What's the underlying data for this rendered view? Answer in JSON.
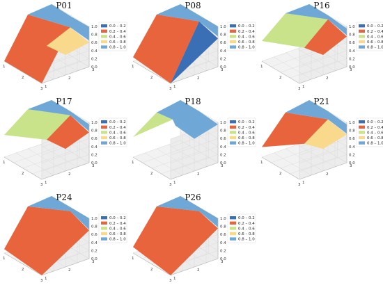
{
  "chart_data": [
    {
      "type": "surface",
      "title": "P01",
      "x": [
        1,
        2,
        3
      ],
      "y": [
        1,
        2,
        3
      ],
      "zlim": [
        0.0,
        1.0
      ],
      "z_ticks": [
        "0.0",
        "0.2",
        "0.4",
        "0.6",
        "0.8",
        "1.0"
      ],
      "x_ticks": [
        "1",
        "2",
        "3"
      ],
      "y_ticks": [
        "1",
        "2",
        "3"
      ],
      "legend": [
        "0.0 – 0.2",
        "0.2 – 0.4",
        "0.4 – 0.6",
        "0.6 – 0.8",
        "0.8 – 1.0"
      ],
      "regions": [
        {
          "band": 1,
          "vertices": [
            [
              1,
              1,
              0.0
            ],
            [
              1,
              2,
              0.95
            ],
            [
              2,
              3,
              0.7
            ],
            [
              3,
              1,
              0.0
            ]
          ]
        },
        {
          "band": 3,
          "vertices": [
            [
              2,
              3,
              0.7
            ],
            [
              3,
              3,
              0.6
            ],
            [
              3,
              2,
              0.5
            ],
            [
              2,
              2,
              0.45
            ]
          ]
        },
        {
          "band": 4,
          "vertices": [
            [
              1,
              2,
              0.95
            ],
            [
              1,
              3,
              1.0
            ],
            [
              2,
              3,
              0.98
            ],
            [
              3,
              3,
              0.99
            ],
            [
              3,
              3,
              0.65
            ],
            [
              2,
              3,
              0.7
            ]
          ]
        }
      ]
    },
    {
      "type": "surface",
      "title": "P08",
      "x": [
        1,
        2,
        3
      ],
      "y": [
        1,
        2,
        3
      ],
      "zlim": [
        0.0,
        1.0
      ],
      "z_ticks": [
        "0.0",
        "0.2",
        "0.4",
        "0.6",
        "0.8",
        "1.0"
      ],
      "x_ticks": [
        "1",
        "2",
        "3"
      ],
      "y_ticks": [
        "1",
        "2",
        "3"
      ],
      "legend": [
        "0.0 – 0.2",
        "0.2 – 0.4",
        "0.4 – 0.6",
        "0.6 – 0.8",
        "0.8 – 1.0"
      ],
      "regions": [
        {
          "band": 1,
          "vertices": [
            [
              1,
              1,
              0.1
            ],
            [
              1,
              2,
              0.95
            ],
            [
              2,
              3,
              0.85
            ],
            [
              3,
              1,
              0.0
            ]
          ]
        },
        {
          "band": 0,
          "vertices": [
            [
              2,
              3,
              0.85
            ],
            [
              3,
              3,
              0.7
            ],
            [
              3,
              1,
              0.0
            ]
          ]
        },
        {
          "band": 4,
          "vertices": [
            [
              1,
              2,
              0.95
            ],
            [
              1,
              3,
              1.0
            ],
            [
              2,
              3,
              1.0
            ],
            [
              3,
              3,
              1.0
            ],
            [
              3,
              3,
              0.75
            ],
            [
              2,
              3,
              0.85
            ]
          ]
        }
      ]
    },
    {
      "type": "surface",
      "title": "P16",
      "x": [
        1,
        2,
        3
      ],
      "y": [
        1,
        2,
        3
      ],
      "zlim": [
        0.0,
        1.0
      ],
      "z_ticks": [
        "0.0",
        "0.2",
        "0.4",
        "0.6",
        "0.8",
        "1.0"
      ],
      "x_ticks": [
        "1",
        "2",
        "3"
      ],
      "y_ticks": [
        "1",
        "2",
        "3"
      ],
      "legend": [
        "0.0 – 0.2",
        "0.2 – 0.4",
        "0.4 – 0.6",
        "0.6 – 0.8",
        "0.8 – 1.0"
      ],
      "regions": [
        {
          "band": 2,
          "vertices": [
            [
              1,
              1,
              0.5
            ],
            [
              1,
              2,
              0.98
            ],
            [
              2,
              3,
              0.9
            ],
            [
              2,
              2,
              0.4
            ]
          ]
        },
        {
          "band": 1,
          "vertices": [
            [
              2,
              3,
              0.9
            ],
            [
              3,
              3,
              0.75
            ],
            [
              3,
              2,
              0.5
            ],
            [
              2,
              2,
              0.4
            ]
          ]
        },
        {
          "band": 4,
          "vertices": [
            [
              1,
              2,
              0.98
            ],
            [
              1,
              3,
              1.0
            ],
            [
              2,
              3,
              1.0
            ],
            [
              3,
              3,
              0.95
            ],
            [
              3,
              3,
              0.78
            ],
            [
              2,
              3,
              0.9
            ]
          ]
        }
      ]
    },
    {
      "type": "surface",
      "title": "P17",
      "x": [
        1,
        2,
        3
      ],
      "y": [
        1,
        2,
        3
      ],
      "zlim": [
        0.0,
        1.0
      ],
      "z_ticks": [
        "0.0",
        "0.2",
        "0.4",
        "0.6",
        "0.8",
        "1.0"
      ],
      "x_ticks": [
        "1",
        "2",
        "3"
      ],
      "y_ticks": [
        "1",
        "2",
        "3"
      ],
      "legend": [
        "0.0 – 0.2",
        "0.2 – 0.4",
        "0.4 – 0.6",
        "0.6 – 0.8",
        "0.8 – 1.0"
      ],
      "regions": [
        {
          "band": 2,
          "vertices": [
            [
              1,
              1,
              0.55
            ],
            [
              1,
              2,
              0.98
            ],
            [
              2,
              3,
              0.9
            ],
            [
              2,
              2,
              0.5
            ]
          ]
        },
        {
          "band": 1,
          "vertices": [
            [
              2,
              3,
              0.9
            ],
            [
              3,
              3,
              0.75
            ],
            [
              3,
              2,
              0.55
            ],
            [
              2,
              2,
              0.5
            ]
          ]
        },
        {
          "band": 4,
          "vertices": [
            [
              1,
              2,
              0.98
            ],
            [
              1,
              3,
              1.0
            ],
            [
              2,
              3,
              1.0
            ],
            [
              3,
              3,
              0.95
            ],
            [
              3,
              3,
              0.78
            ],
            [
              2,
              3,
              0.9
            ]
          ]
        }
      ]
    },
    {
      "type": "surface",
      "title": "P18",
      "x": [
        1,
        2,
        3
      ],
      "y": [
        1,
        2,
        3
      ],
      "zlim": [
        0.0,
        1.0
      ],
      "z_ticks": [
        "0.0",
        "0.2",
        "0.4",
        "0.6",
        "0.8",
        "1.0"
      ],
      "x_ticks": [
        "1",
        "2",
        "3"
      ],
      "y_ticks": [
        "1",
        "2",
        "3"
      ],
      "legend": [
        "0.0 – 0.2",
        "0.2 – 0.4",
        "0.4 – 0.6",
        "0.6 – 0.8",
        "0.8 – 1.0"
      ],
      "regions": [
        {
          "band": 2,
          "vertices": [
            [
              1,
              1,
              0.5
            ],
            [
              1,
              2,
              0.9
            ],
            [
              1.6,
              2.2,
              0.85
            ]
          ]
        },
        {
          "band": 4,
          "vertices": [
            [
              1,
              2,
              0.9
            ],
            [
              1,
              3,
              1.0
            ],
            [
              2,
              3,
              1.0
            ],
            [
              3,
              3,
              0.95
            ],
            [
              3,
              2,
              0.8
            ],
            [
              2,
              2,
              0.85
            ],
            [
              1.6,
              2.2,
              0.85
            ]
          ]
        }
      ]
    },
    {
      "type": "surface",
      "title": "P21",
      "x": [
        1,
        2,
        3
      ],
      "y": [
        1,
        2,
        3
      ],
      "zlim": [
        0.0,
        1.0
      ],
      "z_ticks": [
        "0.0",
        "0.2",
        "0.4",
        "0.6",
        "0.8",
        "1.0"
      ],
      "x_ticks": [
        "1",
        "2",
        "3"
      ],
      "y_ticks": [
        "1",
        "2",
        "3"
      ],
      "legend": [
        "0.0 – 0.2",
        "0.2 – 0.4",
        "0.4 – 0.6",
        "0.6 – 0.8",
        "0.8 – 1.0"
      ],
      "regions": [
        {
          "band": 1,
          "vertices": [
            [
              1,
              1,
              0.25
            ],
            [
              1,
              2,
              0.9
            ],
            [
              2,
              3,
              0.8
            ],
            [
              2,
              2,
              0.4
            ]
          ]
        },
        {
          "band": 3,
          "vertices": [
            [
              2,
              3,
              0.8
            ],
            [
              3,
              3,
              0.7
            ],
            [
              3,
              2,
              0.55
            ],
            [
              2,
              2,
              0.4
            ]
          ]
        },
        {
          "band": 4,
          "vertices": [
            [
              1,
              2,
              0.9
            ],
            [
              1,
              3,
              1.0
            ],
            [
              2,
              3,
              1.0
            ],
            [
              3,
              3,
              0.95
            ],
            [
              3,
              3,
              0.72
            ],
            [
              2,
              3,
              0.8
            ]
          ]
        }
      ]
    },
    {
      "type": "surface",
      "title": "P24",
      "x": [
        1,
        2,
        3
      ],
      "y": [
        1,
        2,
        3
      ],
      "zlim": [
        0.0,
        1.0
      ],
      "z_ticks": [
        "0.0",
        "0.2",
        "0.4",
        "0.6",
        "0.8",
        "1.0"
      ],
      "x_ticks": [
        "1",
        "2",
        "3"
      ],
      "y_ticks": [
        "1",
        "2",
        "3"
      ],
      "legend": [
        "0.0 – 0.2",
        "0.2 – 0.4",
        "0.4 – 0.6",
        "0.6 – 0.8",
        "0.8 – 1.0"
      ],
      "regions": [
        {
          "band": 1,
          "vertices": [
            [
              1,
              1,
              0.1
            ],
            [
              1,
              2,
              0.95
            ],
            [
              2,
              3,
              0.9
            ],
            [
              3,
              3,
              0.7
            ],
            [
              3,
              1,
              0.0
            ]
          ]
        },
        {
          "band": 4,
          "vertices": [
            [
              1,
              2,
              0.95
            ],
            [
              1,
              3,
              1.0
            ],
            [
              2,
              3,
              1.0
            ],
            [
              3,
              3,
              1.0
            ],
            [
              3,
              3,
              0.72
            ],
            [
              2,
              3,
              0.9
            ]
          ]
        }
      ]
    },
    {
      "type": "surface",
      "title": "P26",
      "x": [
        1,
        2,
        3
      ],
      "y": [
        1,
        2,
        3
      ],
      "zlim": [
        0.0,
        1.0
      ],
      "z_ticks": [
        "0.0",
        "0.2",
        "0.4",
        "0.6",
        "0.8",
        "1.0"
      ],
      "x_ticks": [
        "1",
        "2",
        "3"
      ],
      "y_ticks": [
        "1",
        "2",
        "3"
      ],
      "legend": [
        "0.0 – 0.2",
        "0.2 – 0.4",
        "0.4 – 0.6",
        "0.6 – 0.8",
        "0.8 – 1.0"
      ],
      "regions": [
        {
          "band": 1,
          "vertices": [
            [
              1,
              1,
              0.15
            ],
            [
              1,
              2,
              0.95
            ],
            [
              2,
              3,
              0.9
            ],
            [
              3,
              3,
              0.75
            ],
            [
              3,
              1,
              0.0
            ]
          ]
        },
        {
          "band": 4,
          "vertices": [
            [
              1,
              2,
              0.95
            ],
            [
              1,
              3,
              1.0
            ],
            [
              2,
              3,
              1.0
            ],
            [
              3,
              3,
              1.0
            ],
            [
              3,
              3,
              0.78
            ],
            [
              2,
              3,
              0.9
            ]
          ]
        }
      ]
    }
  ],
  "colors": {
    "band_0": "#3a6fb5",
    "band_1": "#e8643c",
    "band_2": "#c9e38a",
    "band_3": "#f9d98c",
    "band_4": "#6fa8d6",
    "pane": "#f2f2f2",
    "pane_side": "#ececec"
  }
}
